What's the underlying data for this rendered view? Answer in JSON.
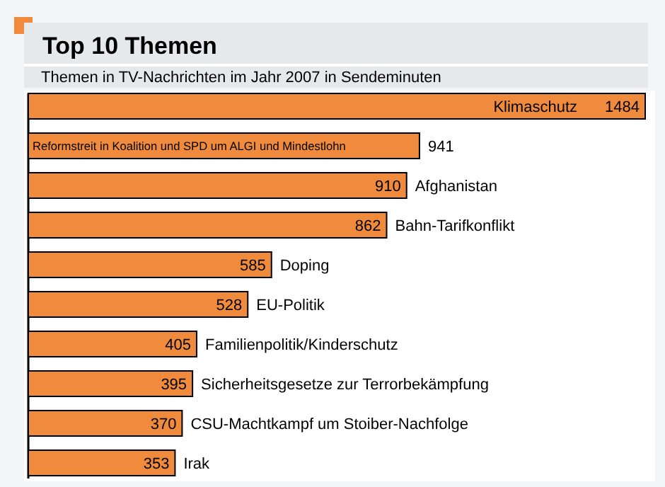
{
  "chart_data": {
    "type": "bar",
    "orientation": "horizontal",
    "title": "Top 10 Themen",
    "subtitle": "Themen in TV-Nachrichten im Jahr 2007 in Sendeminuten",
    "categories": [
      "Klimaschutz",
      "Reformstreit in Koalition und SPD um ALGI und Mindestlohn",
      "Afghanistan",
      "Bahn-Tarifkonflikt",
      "Doping",
      "EU-Politik",
      "Familienpolitik/Kinderschutz",
      "Sicherheitsgesetze zur Terrorbekämpfung",
      "CSU-Machtkampf um Stoiber-Nachfolge",
      "Irak"
    ],
    "values": [
      1484,
      941,
      910,
      862,
      585,
      528,
      405,
      395,
      370,
      353
    ],
    "color": "#f08a3c",
    "data_labels": true
  }
}
